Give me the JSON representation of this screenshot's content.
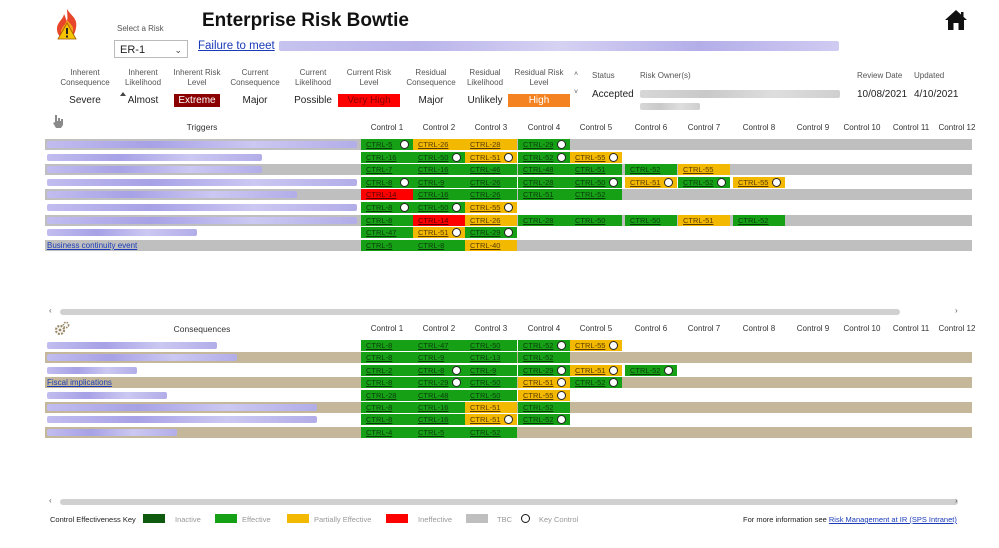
{
  "header": {
    "select_label": "Select a Risk",
    "select_value": "ER-1",
    "title": "Enterprise Risk Bowtie",
    "risk_link_text": "Failure to meet",
    "icons": {
      "logo": "fire-warning-icon",
      "home": "home-icon"
    }
  },
  "risk_fields": [
    {
      "label": "Inherent Consequence",
      "value": "Severe",
      "style": "plain"
    },
    {
      "label": "Inherent Likelihood",
      "value": "Almost",
      "style": "plain"
    },
    {
      "label": "Inherent Risk Level",
      "value": "Extreme",
      "style": "extreme"
    },
    {
      "label": "Current Consequence",
      "value": "Major",
      "style": "plain"
    },
    {
      "label": "Current Likelihood",
      "value": "Possible",
      "style": "plain"
    },
    {
      "label": "Current Risk Level",
      "value": "Very High",
      "style": "veryhigh"
    },
    {
      "label": "Residual Consequence",
      "value": "Major",
      "style": "plain"
    },
    {
      "label": "Residual Likelihood",
      "value": "Unlikely",
      "style": "plain"
    },
    {
      "label": "Residual Risk Level",
      "value": "High",
      "style": "high"
    }
  ],
  "status": {
    "label": "Status",
    "value": "Accepted"
  },
  "owner": {
    "label": "Risk Owner(s)"
  },
  "review": {
    "label": "Review Date",
    "value": "10/08/2021"
  },
  "updated": {
    "label": "Updated",
    "value": "4/10/2021"
  },
  "triggers": {
    "title": "Triggers",
    "columns": [
      "Control 1",
      "Control 2",
      "Control 3",
      "Control 4",
      "Control 5",
      "Control 6",
      "Control 7",
      "Control 8",
      "Control 9",
      "Control 10",
      "Control 11",
      "Control 12"
    ],
    "rows": [
      {
        "label": "",
        "cells": [
          [
            "CTRL-5",
            "g",
            1
          ],
          [
            "CTRL-26",
            "y",
            0
          ],
          [
            "CTRL-28",
            "y",
            0
          ],
          [
            "CTRL-29",
            "g",
            1
          ]
        ]
      },
      {
        "label": "",
        "cells": [
          [
            "CTRL-16",
            "g",
            0
          ],
          [
            "CTRL-50",
            "g",
            1
          ],
          [
            "CTRL-51",
            "y",
            1
          ],
          [
            "CTRL-52",
            "g",
            1
          ],
          [
            "CTRL-55",
            "y",
            1
          ]
        ]
      },
      {
        "label": "",
        "cells": [
          [
            "CTRL-7",
            "g",
            0
          ],
          [
            "CTRL-16",
            "g",
            0
          ],
          [
            "CTRL-46",
            "g",
            0
          ],
          [
            "CTRL-48",
            "g",
            0
          ],
          [
            "CTRL-51",
            "g",
            0
          ],
          [
            "CTRL-52",
            "g",
            0
          ],
          [
            "CTRL-55",
            "y",
            0
          ]
        ]
      },
      {
        "label": "",
        "cells": [
          [
            "CTRL-8",
            "g",
            1
          ],
          [
            "CTRL-9",
            "g",
            0
          ],
          [
            "CTRL-26",
            "g",
            0
          ],
          [
            "CTRL-28",
            "g",
            0
          ],
          [
            "CTRL-50",
            "g",
            1
          ],
          [
            "CTRL-51",
            "y",
            1
          ],
          [
            "CTRL-52",
            "g",
            1
          ],
          [
            "CTRL-55",
            "y",
            1
          ]
        ]
      },
      {
        "label": "",
        "cells": [
          [
            "CTRL-14",
            "r",
            0
          ],
          [
            "CTRL-16",
            "g",
            0
          ],
          [
            "CTRL-26",
            "g",
            0
          ],
          [
            "CTRL-51",
            "g",
            0
          ],
          [
            "CTRL-52",
            "g",
            0
          ]
        ]
      },
      {
        "label": "",
        "cells": [
          [
            "CTRL-8",
            "g",
            1
          ],
          [
            "CTRL-50",
            "g",
            1
          ],
          [
            "CTRL-55",
            "y",
            1
          ]
        ]
      },
      {
        "label": "",
        "cells": [
          [
            "CTRL-8",
            "g",
            0
          ],
          [
            "CTRL-14",
            "r",
            0
          ],
          [
            "CTRL-26",
            "y",
            0
          ],
          [
            "CTRL-28",
            "g",
            0
          ],
          [
            "CTRL-50",
            "g",
            0
          ],
          [
            "CTRL-50",
            "g",
            0
          ],
          [
            "CTRL-51",
            "y",
            0
          ],
          [
            "CTRL-52",
            "g",
            0
          ]
        ]
      },
      {
        "label": "",
        "cells": [
          [
            "CTRL-47",
            "g",
            0
          ],
          [
            "CTRL-51",
            "y",
            1
          ],
          [
            "CTRL-29",
            "g",
            1
          ]
        ]
      },
      {
        "label": "Business continuity event",
        "cells": [
          [
            "CTRL-5",
            "g",
            0
          ],
          [
            "CTRL-8",
            "g",
            0
          ],
          [
            "CTRL-40",
            "y",
            0
          ]
        ]
      }
    ]
  },
  "consequences": {
    "title": "Consequences",
    "columns": [
      "Control 1",
      "Control 2",
      "Control 3",
      "Control 4",
      "Control 5",
      "Control 6",
      "Control 7",
      "Control 8",
      "Control 9",
      "Control 10",
      "Control 11",
      "Control 12"
    ],
    "rows": [
      {
        "label": "",
        "cells": [
          [
            "CTRL-8",
            "g",
            0
          ],
          [
            "CTRL-47",
            "g",
            0
          ],
          [
            "CTRL-50",
            "g",
            0
          ],
          [
            "CTRL-52",
            "g",
            1
          ],
          [
            "CTRL-55",
            "y",
            1
          ]
        ]
      },
      {
        "label": "",
        "cells": [
          [
            "CTRL-8",
            "g",
            0
          ],
          [
            "CTRL-9",
            "g",
            0
          ],
          [
            "CTRL-13",
            "g",
            0
          ],
          [
            "CTRL-52",
            "g",
            0
          ]
        ]
      },
      {
        "label": "",
        "cells": [
          [
            "CTRL-2",
            "g",
            0
          ],
          [
            "CTRL-8",
            "g",
            1
          ],
          [
            "CTRL-9",
            "g",
            0
          ],
          [
            "CTRL-29",
            "g",
            1
          ],
          [
            "CTRL-51",
            "y",
            1
          ],
          [
            "CTRL-52",
            "g",
            1
          ]
        ]
      },
      {
        "label": "Fiscal implications",
        "cells": [
          [
            "CTRL-8",
            "g",
            0
          ],
          [
            "CTRL-29",
            "g",
            1
          ],
          [
            "CTRL-50",
            "g",
            0
          ],
          [
            "CTRL-51",
            "y",
            1
          ],
          [
            "CTRL-52",
            "g",
            1
          ]
        ]
      },
      {
        "label": "",
        "cells": [
          [
            "CTRL-28",
            "g",
            0
          ],
          [
            "CTRL-48",
            "g",
            0
          ],
          [
            "CTRL-50",
            "g",
            0
          ],
          [
            "CTRL-55",
            "y",
            1
          ]
        ]
      },
      {
        "label": "",
        "cells": [
          [
            "CTRL-8",
            "g",
            0
          ],
          [
            "CTRL-16",
            "g",
            0
          ],
          [
            "CTRL-51",
            "y",
            0
          ],
          [
            "CTRL-52",
            "g",
            0
          ]
        ]
      },
      {
        "label": "",
        "cells": [
          [
            "CTRL-8",
            "g",
            0
          ],
          [
            "CTRL-16",
            "g",
            0
          ],
          [
            "CTRL-51",
            "y",
            1
          ],
          [
            "CTRL-52",
            "g",
            1
          ]
        ]
      },
      {
        "label": "",
        "cells": [
          [
            "CTRL-4",
            "g",
            0
          ],
          [
            "CTRL-5",
            "g",
            0
          ],
          [
            "CTRL-52",
            "g",
            0
          ]
        ]
      }
    ]
  },
  "legend": {
    "title": "Control Effectiveness Key",
    "items": [
      {
        "label": "Inactive",
        "color": "#0e5a0e"
      },
      {
        "label": "Effective",
        "color": "#16a016"
      },
      {
        "label": "Partially Effective",
        "color": "#f3b800"
      },
      {
        "label": "Ineffective",
        "color": "#ff0000"
      },
      {
        "label": "TBC",
        "color": "#bfbfbf"
      }
    ],
    "key_control_label": "Key Control"
  },
  "footer": {
    "prefix": "For more information see",
    "link": "Risk Management at IR (SPS Intranet)"
  }
}
